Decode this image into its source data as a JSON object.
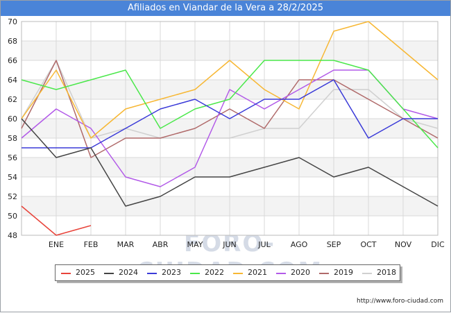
{
  "header": {
    "title": "Afiliados en Viandar de la Vera a 28/2/2025"
  },
  "watermark": "FORO-CIUDAD.COM",
  "footer": {
    "source": "http://www.foro-ciudad.com"
  },
  "chart_data": {
    "type": "line",
    "title": "Afiliados en Viandar de la Vera a 28/2/2025",
    "xlabel": "",
    "ylabel": "",
    "x_positions": [
      "DIC-prev",
      "ENE",
      "FEB",
      "MAR",
      "ABR",
      "MAY",
      "JUN",
      "JUL",
      "AGO",
      "SEP",
      "OCT",
      "NOV",
      "DIC"
    ],
    "tick_labels": [
      "ENE",
      "FEB",
      "MAR",
      "ABR",
      "MAY",
      "JUN",
      "JUL",
      "AGO",
      "SEP",
      "OCT",
      "NOV",
      "DIC"
    ],
    "ylim": [
      48,
      70
    ],
    "yticks": [
      48,
      50,
      52,
      54,
      56,
      58,
      60,
      62,
      64,
      66,
      68,
      70
    ],
    "grid": true,
    "legend_position": "bottom",
    "series": [
      {
        "name": "2025",
        "color": "#e8433a",
        "values": [
          51,
          48,
          49
        ]
      },
      {
        "name": "2024",
        "color": "#444444",
        "values": [
          60,
          56,
          57,
          51,
          52,
          54,
          54,
          55,
          56,
          54,
          55,
          53,
          51
        ]
      },
      {
        "name": "2023",
        "color": "#3a3ad8",
        "values": [
          57,
          57,
          57,
          59,
          61,
          62,
          60,
          62,
          62,
          64,
          58,
          60,
          60
        ]
      },
      {
        "name": "2022",
        "color": "#4ae84a",
        "values": [
          64,
          63,
          64,
          65,
          59,
          61,
          62,
          66,
          66,
          66,
          65,
          61,
          57
        ]
      },
      {
        "name": "2021",
        "color": "#f7b733",
        "values": [
          60,
          65,
          58,
          61,
          62,
          63,
          66,
          63,
          61,
          69,
          70,
          67,
          64
        ]
      },
      {
        "name": "2020",
        "color": "#b25ae8",
        "values": [
          58,
          61,
          59,
          54,
          53,
          55,
          63,
          61,
          63,
          65,
          65,
          61,
          60
        ]
      },
      {
        "name": "2019",
        "color": "#b06a6a",
        "values": [
          59,
          66,
          56,
          58,
          58,
          59,
          61,
          59,
          64,
          64,
          62,
          60,
          58
        ]
      },
      {
        "name": "2018",
        "color": "#d0d0d0",
        "values": [
          60,
          66,
          58,
          59,
          58,
          58,
          58,
          59,
          59,
          63,
          63,
          60,
          59
        ]
      }
    ]
  }
}
